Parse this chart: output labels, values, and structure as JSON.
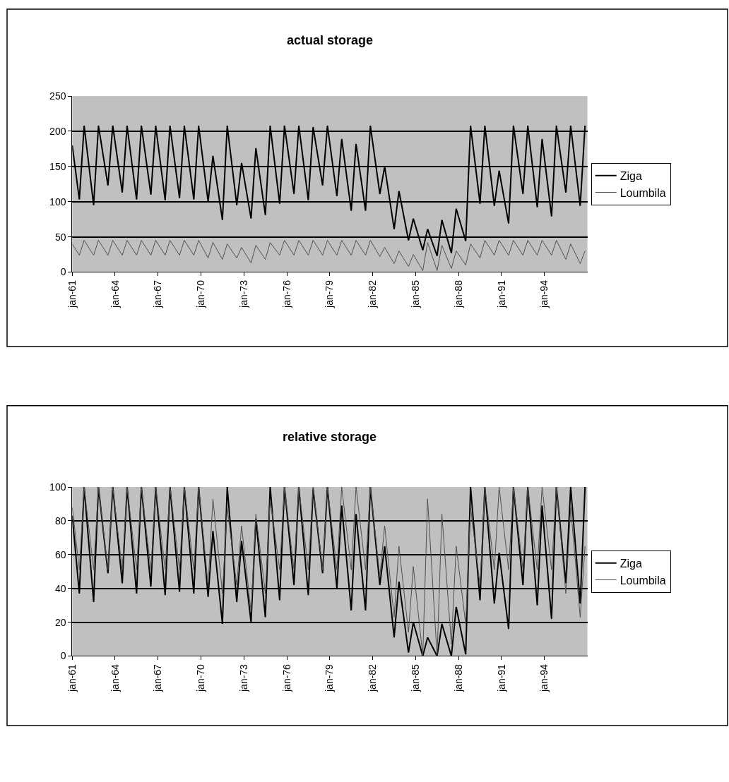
{
  "chart_data": [
    {
      "type": "line",
      "title": "actual storage",
      "x": [
        "1961-01",
        "1961-07",
        "1961-11",
        "1962-07",
        "1962-11",
        "1963-07",
        "1963-11",
        "1964-07",
        "1964-11",
        "1965-07",
        "1965-11",
        "1966-07",
        "1966-11",
        "1967-07",
        "1967-11",
        "1968-07",
        "1968-11",
        "1969-07",
        "1969-11",
        "1970-07",
        "1970-11",
        "1971-07",
        "1971-11",
        "1972-07",
        "1972-11",
        "1973-07",
        "1973-11",
        "1974-07",
        "1974-11",
        "1975-07",
        "1975-11",
        "1976-07",
        "1976-11",
        "1977-07",
        "1977-11",
        "1978-07",
        "1978-11",
        "1979-07",
        "1979-11",
        "1980-07",
        "1980-11",
        "1981-07",
        "1981-11",
        "1982-07",
        "1982-11",
        "1983-07",
        "1983-11",
        "1984-07",
        "1984-11",
        "1985-07",
        "1985-11",
        "1986-07",
        "1986-11",
        "1987-07",
        "1987-11",
        "1988-07",
        "1988-11",
        "1989-07",
        "1989-11",
        "1990-07",
        "1990-11",
        "1991-07",
        "1991-11",
        "1992-07",
        "1992-11",
        "1993-07",
        "1993-11",
        "1994-07",
        "1994-11",
        "1995-07",
        "1995-11",
        "1996-07",
        "1996-11"
      ],
      "series": [
        {
          "name": "Ziga",
          "color": "#000000",
          "values": [
            180,
            103,
            208,
            95,
            208,
            123,
            208,
            113,
            208,
            103,
            208,
            110,
            208,
            102,
            208,
            105,
            208,
            103,
            208,
            100,
            165,
            74,
            208,
            95,
            155,
            76,
            176,
            81,
            208,
            97,
            208,
            111,
            208,
            102,
            206,
            123,
            208,
            108,
            189,
            87,
            182,
            87,
            208,
            111,
            150,
            61,
            115,
            45,
            76,
            31,
            61,
            23,
            74,
            27,
            90,
            44,
            208,
            97,
            208,
            94,
            144,
            69,
            208,
            111,
            208,
            92,
            189,
            79,
            208,
            113,
            208,
            94,
            208
          ]
        },
        {
          "name": "Loumbila",
          "color": "#505050",
          "values": [
            40,
            24,
            45,
            24,
            45,
            24,
            45,
            24,
            45,
            24,
            45,
            24,
            45,
            24,
            45,
            24,
            45,
            24,
            45,
            20,
            42,
            18,
            40,
            20,
            35,
            13,
            38,
            18,
            42,
            24,
            45,
            24,
            45,
            24,
            45,
            24,
            45,
            24,
            45,
            24,
            45,
            24,
            45,
            22,
            35,
            12,
            30,
            8,
            25,
            2,
            42,
            2,
            38,
            5,
            30,
            10,
            40,
            20,
            45,
            24,
            45,
            24,
            45,
            24,
            45,
            24,
            45,
            24,
            45,
            18,
            40,
            12,
            30
          ]
        }
      ],
      "xlim": [
        "1961-01",
        "1997-01"
      ],
      "xticks": [
        {
          "value": "1961-01",
          "label": "jan-61"
        },
        {
          "value": "1964-01",
          "label": "jan-64"
        },
        {
          "value": "1967-01",
          "label": "jan-67"
        },
        {
          "value": "1970-01",
          "label": "jan-70"
        },
        {
          "value": "1973-01",
          "label": "jan-73"
        },
        {
          "value": "1976-01",
          "label": "jan-76"
        },
        {
          "value": "1979-01",
          "label": "jan-79"
        },
        {
          "value": "1982-01",
          "label": "jan-82"
        },
        {
          "value": "1985-01",
          "label": "jan-85"
        },
        {
          "value": "1988-01",
          "label": "jan-88"
        },
        {
          "value": "1991-01",
          "label": "jan-91"
        },
        {
          "value": "1994-01",
          "label": "jan-94"
        }
      ],
      "ylim": [
        0,
        250
      ],
      "yticks": [
        0,
        50,
        100,
        150,
        200,
        250
      ],
      "grid": "y",
      "legend": "right",
      "marker": "none",
      "line_style": "solid"
    },
    {
      "type": "line",
      "title": "relative storage",
      "x": [
        "1961-01",
        "1961-07",
        "1961-11",
        "1962-07",
        "1962-11",
        "1963-07",
        "1963-11",
        "1964-07",
        "1964-11",
        "1965-07",
        "1965-11",
        "1966-07",
        "1966-11",
        "1967-07",
        "1967-11",
        "1968-07",
        "1968-11",
        "1969-07",
        "1969-11",
        "1970-07",
        "1970-11",
        "1971-07",
        "1971-11",
        "1972-07",
        "1972-11",
        "1973-07",
        "1973-11",
        "1974-07",
        "1974-11",
        "1975-07",
        "1975-11",
        "1976-07",
        "1976-11",
        "1977-07",
        "1977-11",
        "1978-07",
        "1978-11",
        "1979-07",
        "1979-11",
        "1980-07",
        "1980-11",
        "1981-07",
        "1981-11",
        "1982-07",
        "1982-11",
        "1983-07",
        "1983-11",
        "1984-07",
        "1984-11",
        "1985-07",
        "1985-11",
        "1986-07",
        "1986-11",
        "1987-07",
        "1987-11",
        "1988-07",
        "1988-11",
        "1989-07",
        "1989-11",
        "1990-07",
        "1990-11",
        "1991-07",
        "1991-11",
        "1992-07",
        "1992-11",
        "1993-07",
        "1993-11",
        "1994-07",
        "1994-11",
        "1995-07",
        "1995-11",
        "1996-07",
        "1996-11"
      ],
      "series": [
        {
          "name": "Ziga",
          "color": "#000000",
          "values": [
            83,
            37,
            100,
            32,
            100,
            49,
            100,
            43,
            100,
            37,
            100,
            41,
            100,
            36,
            100,
            38,
            100,
            37,
            100,
            35,
            74,
            19,
            100,
            32,
            68,
            20,
            81,
            23,
            100,
            33,
            100,
            42,
            100,
            36,
            99,
            49,
            100,
            40,
            89,
            27,
            84,
            27,
            100,
            42,
            65,
            11,
            44,
            2,
            20,
            0,
            11,
            0,
            19,
            0,
            29,
            1,
            100,
            33,
            100,
            31,
            61,
            16,
            100,
            42,
            100,
            30,
            89,
            22,
            100,
            43,
            100,
            31,
            100
          ]
        },
        {
          "name": "Loumbila",
          "color": "#505050",
          "values": [
            88,
            51,
            100,
            51,
            100,
            51,
            100,
            51,
            100,
            51,
            100,
            51,
            100,
            51,
            100,
            51,
            100,
            51,
            100,
            42,
            93,
            37,
            88,
            42,
            77,
            26,
            84,
            37,
            93,
            51,
            100,
            51,
            100,
            51,
            100,
            51,
            100,
            51,
            100,
            51,
            100,
            51,
            100,
            47,
            77,
            23,
            65,
            14,
            53,
            0,
            93,
            0,
            84,
            7,
            65,
            19,
            88,
            42,
            100,
            51,
            100,
            51,
            100,
            51,
            100,
            51,
            100,
            51,
            100,
            37,
            88,
            23,
            65
          ]
        }
      ],
      "xlim": [
        "1961-01",
        "1997-01"
      ],
      "xticks": [
        {
          "value": "1961-01",
          "label": "jan-61"
        },
        {
          "value": "1964-01",
          "label": "jan-64"
        },
        {
          "value": "1967-01",
          "label": "jan-67"
        },
        {
          "value": "1970-01",
          "label": "jan-70"
        },
        {
          "value": "1973-01",
          "label": "jan-73"
        },
        {
          "value": "1976-01",
          "label": "jan-76"
        },
        {
          "value": "1979-01",
          "label": "jan-79"
        },
        {
          "value": "1982-01",
          "label": "jan-82"
        },
        {
          "value": "1985-01",
          "label": "jan-85"
        },
        {
          "value": "1988-01",
          "label": "jan-88"
        },
        {
          "value": "1991-01",
          "label": "jan-91"
        },
        {
          "value": "1994-01",
          "label": "jan-94"
        }
      ],
      "ylim": [
        0,
        100
      ],
      "yticks": [
        0,
        20,
        40,
        60,
        80,
        100
      ],
      "grid": "y",
      "legend": "right",
      "marker": "none",
      "line_style": "solid"
    }
  ]
}
